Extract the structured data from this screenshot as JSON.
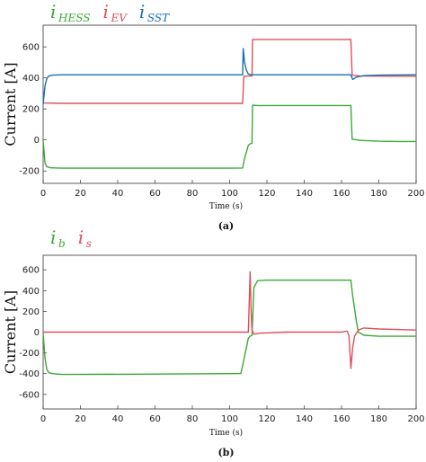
{
  "chart_data": [
    {
      "type": "line",
      "caption": "(a)",
      "xlabel": "Time (s)",
      "ylabel": "Current [A]",
      "xlim": [
        0,
        200
      ],
      "ylim": [
        -280,
        740
      ],
      "xticks": [
        0,
        20,
        40,
        60,
        80,
        100,
        120,
        140,
        160,
        180,
        200
      ],
      "yticks": [
        -200,
        0,
        200,
        400,
        600
      ],
      "grid": false,
      "legend_position": "top-left",
      "series": [
        {
          "name_base": "i",
          "name_sub": "HESS",
          "color": "#3aaa35",
          "points": [
            [
              0,
              -5
            ],
            [
              1,
              -150
            ],
            [
              2,
              -172
            ],
            [
              4,
              -180
            ],
            [
              10,
              -182
            ],
            [
              50,
              -182
            ],
            [
              100,
              -182
            ],
            [
              107,
              -181
            ],
            [
              108,
              -120
            ],
            [
              110,
              -35
            ],
            [
              111,
              -25
            ],
            [
              112,
              -22
            ],
            [
              112.3,
              225
            ],
            [
              115,
              222
            ],
            [
              140,
              222
            ],
            [
              164,
              222
            ],
            [
              165,
              222
            ],
            [
              165.7,
              5
            ],
            [
              170,
              -3
            ],
            [
              180,
              -8
            ],
            [
              190,
              -10
            ],
            [
              200,
              -10
            ]
          ]
        },
        {
          "name_base": "i",
          "name_sub": "EV",
          "color": "#e0505a",
          "points": [
            [
              0,
              240
            ],
            [
              1,
              238
            ],
            [
              10,
              236
            ],
            [
              50,
              236
            ],
            [
              100,
              236
            ],
            [
              107,
              236
            ],
            [
              107.6,
              410
            ],
            [
              110,
              412
            ],
            [
              112,
              412
            ],
            [
              112.3,
              648
            ],
            [
              140,
              648
            ],
            [
              165,
              648
            ],
            [
              165.7,
              418
            ],
            [
              170,
              412
            ],
            [
              200,
              410
            ]
          ]
        },
        {
          "name_base": "i",
          "name_sub": "SST",
          "color": "#1a6fb5",
          "points": [
            [
              0,
              230
            ],
            [
              1,
              350
            ],
            [
              2,
              395
            ],
            [
              3,
              412
            ],
            [
              5,
              418
            ],
            [
              10,
              420
            ],
            [
              50,
              420
            ],
            [
              100,
              420
            ],
            [
              107,
              420
            ],
            [
              107.3,
              590
            ],
            [
              108,
              500
            ],
            [
              109,
              450
            ],
            [
              110,
              425
            ],
            [
              112,
              420
            ],
            [
              140,
              420
            ],
            [
              164,
              420
            ],
            [
              165,
              420
            ],
            [
              166,
              390
            ],
            [
              168,
              405
            ],
            [
              172,
              415
            ],
            [
              180,
              418
            ],
            [
              200,
              420
            ]
          ]
        }
      ]
    },
    {
      "type": "line",
      "caption": "(b)",
      "xlabel": "Time (s)",
      "ylabel": "Current [A]",
      "xlim": [
        0,
        200
      ],
      "ylim": [
        -740,
        740
      ],
      "xticks": [
        0,
        20,
        40,
        60,
        80,
        100,
        120,
        140,
        160,
        180,
        200
      ],
      "yticks": [
        -600,
        -400,
        -200,
        0,
        200,
        400,
        600
      ],
      "grid": false,
      "legend_position": "top-left",
      "series": [
        {
          "name_base": "i",
          "name_sub": "b",
          "color": "#3aaa35",
          "points": [
            [
              0,
              -10
            ],
            [
              1,
              -250
            ],
            [
              2,
              -360
            ],
            [
              3,
              -390
            ],
            [
              5,
              -400
            ],
            [
              10,
              -408
            ],
            [
              50,
              -405
            ],
            [
              100,
              -400
            ],
            [
              106,
              -398
            ],
            [
              107,
              -320
            ],
            [
              109,
              -150
            ],
            [
              110,
              -60
            ],
            [
              111,
              -40
            ],
            [
              112,
              -30
            ],
            [
              113,
              430
            ],
            [
              115,
              495
            ],
            [
              120,
              500
            ],
            [
              140,
              500
            ],
            [
              164,
              500
            ],
            [
              165,
              500
            ],
            [
              166,
              350
            ],
            [
              168,
              100
            ],
            [
              169,
              0
            ],
            [
              172,
              -30
            ],
            [
              180,
              -40
            ],
            [
              200,
              -40
            ]
          ]
        },
        {
          "name_base": "i",
          "name_sub": "s",
          "color": "#e0505a",
          "points": [
            [
              0,
              0
            ],
            [
              50,
              0
            ],
            [
              100,
              0
            ],
            [
              110,
              0
            ],
            [
              111,
              580
            ],
            [
              111.5,
              200
            ],
            [
              112,
              20
            ],
            [
              113,
              -20
            ],
            [
              116,
              -10
            ],
            [
              130,
              0
            ],
            [
              140,
              0
            ],
            [
              160,
              0
            ],
            [
              163,
              10
            ],
            [
              164,
              -30
            ],
            [
              165,
              -350
            ],
            [
              166,
              -150
            ],
            [
              167,
              -40
            ],
            [
              169,
              20
            ],
            [
              172,
              40
            ],
            [
              180,
              30
            ],
            [
              200,
              20
            ]
          ]
        }
      ]
    }
  ]
}
